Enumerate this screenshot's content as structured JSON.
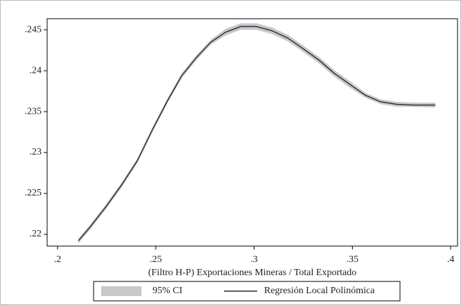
{
  "chart_data": {
    "type": "line",
    "xlabel": "(Filtro H-P) Exportaciones Mineras / Total Exportado",
    "x": [
      0.2106,
      0.2166,
      0.2247,
      0.2325,
      0.2406,
      0.2483,
      0.2561,
      0.2632,
      0.2706,
      0.278,
      0.2854,
      0.2931,
      0.3012,
      0.309,
      0.3171,
      0.3249,
      0.333,
      0.3407,
      0.3489,
      0.3566,
      0.3644,
      0.3725,
      0.3806,
      0.3922
    ],
    "series": [
      {
        "name": "95% CI",
        "color": "#c8c8c8",
        "lower": [
          0.2189,
          0.2206,
          0.2231,
          0.2257,
          0.2287,
          0.2325,
          0.2361,
          0.2391,
          0.2413,
          0.2432,
          0.2443,
          0.245,
          0.245,
          0.2445,
          0.2436,
          0.2423,
          0.2409,
          0.2393,
          0.2379,
          0.2367,
          0.2359,
          0.2356,
          0.2356,
          0.2355
        ],
        "upper": [
          0.2195,
          0.2212,
          0.2237,
          0.2263,
          0.2293,
          0.2331,
          0.2367,
          0.2397,
          0.2419,
          0.2438,
          0.2451,
          0.2458,
          0.2458,
          0.2453,
          0.2444,
          0.2431,
          0.2417,
          0.2401,
          0.2387,
          0.2373,
          0.2365,
          0.2362,
          0.2361,
          0.2361
        ]
      },
      {
        "name": "Regresión Local Polinómica",
        "color": "#1a2a3a",
        "values": [
          0.2192,
          0.2209,
          0.2234,
          0.226,
          0.229,
          0.2328,
          0.2364,
          0.2394,
          0.2416,
          0.2435,
          0.2447,
          0.2454,
          0.2454,
          0.2449,
          0.244,
          0.2427,
          0.2413,
          0.2397,
          0.2383,
          0.237,
          0.2362,
          0.2359,
          0.2358,
          0.2358
        ]
      }
    ],
    "xlim": [
      0.1947,
      0.4035
    ],
    "ylim": [
      0.21856,
      0.24636
    ],
    "xticks": [
      {
        "value": 0.2,
        "label": ".2"
      },
      {
        "value": 0.25,
        "label": ".25"
      },
      {
        "value": 0.3,
        "label": ".3"
      },
      {
        "value": 0.35,
        "label": ".35"
      },
      {
        "value": 0.4,
        "label": ".4"
      }
    ],
    "yticks": [
      {
        "value": 0.22,
        "label": ".22"
      },
      {
        "value": 0.225,
        "label": ".225"
      },
      {
        "value": 0.23,
        "label": ".23"
      },
      {
        "value": 0.235,
        "label": ".235"
      },
      {
        "value": 0.24,
        "label": ".24"
      },
      {
        "value": 0.245,
        "label": ".245"
      }
    ],
    "grid": false
  }
}
